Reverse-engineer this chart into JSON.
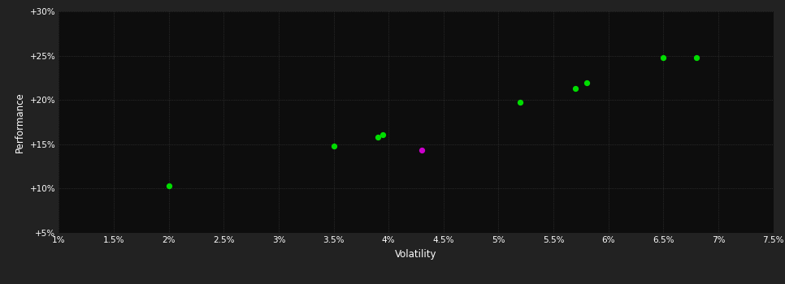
{
  "xlabel": "Volatility",
  "ylabel": "Performance",
  "background_color": "#222222",
  "plot_bg_color": "#0d0d0d",
  "grid_color": "#404040",
  "text_color": "#ffffff",
  "xlim": [
    0.01,
    0.075
  ],
  "ylim": [
    0.05,
    0.3
  ],
  "xticks": [
    0.01,
    0.015,
    0.02,
    0.025,
    0.03,
    0.035,
    0.04,
    0.045,
    0.05,
    0.055,
    0.06,
    0.065,
    0.07,
    0.075
  ],
  "yticks": [
    0.05,
    0.1,
    0.15,
    0.2,
    0.25,
    0.3
  ],
  "green_points": [
    [
      0.02,
      0.103
    ],
    [
      0.035,
      0.148
    ],
    [
      0.039,
      0.158
    ],
    [
      0.0395,
      0.161
    ],
    [
      0.052,
      0.197
    ],
    [
      0.057,
      0.213
    ],
    [
      0.058,
      0.219
    ],
    [
      0.065,
      0.248
    ],
    [
      0.068,
      0.248
    ]
  ],
  "magenta_points": [
    [
      0.043,
      0.143
    ]
  ],
  "point_size": 18,
  "green_color": "#00dd00",
  "magenta_color": "#cc00cc"
}
